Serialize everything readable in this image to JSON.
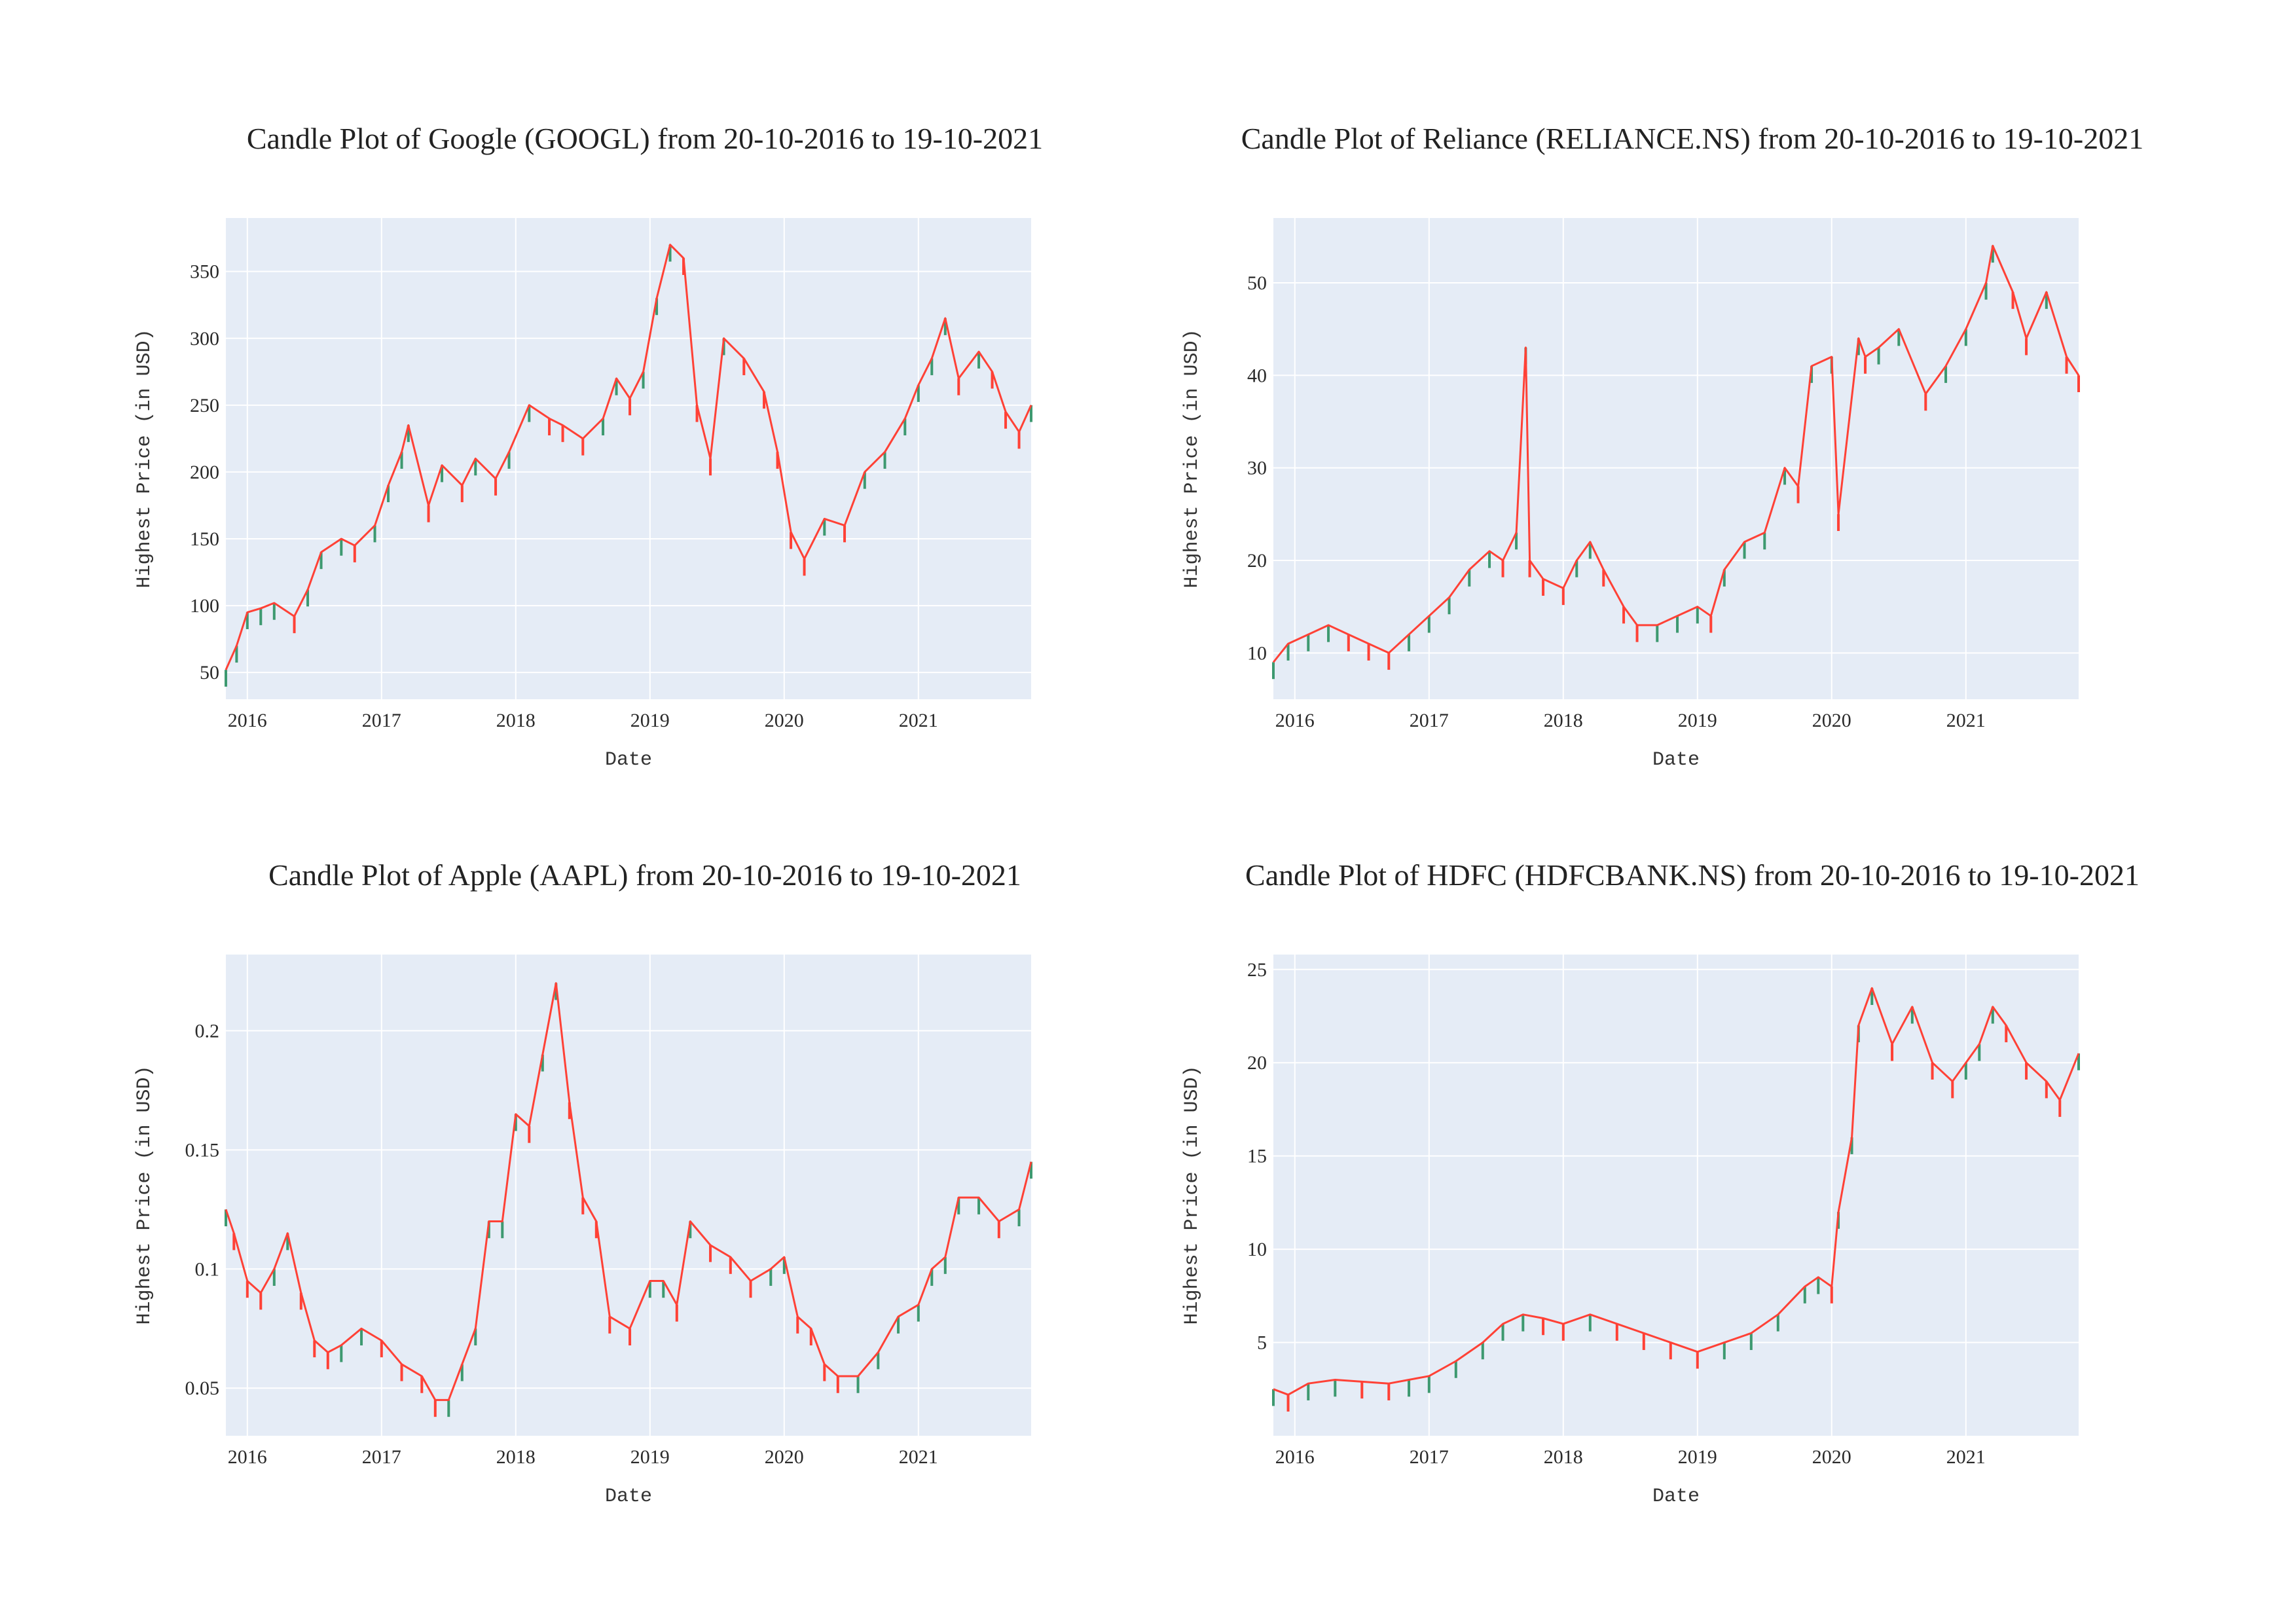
{
  "colors": {
    "increasing": "#3d9970",
    "decreasing": "#ff4136",
    "plot_bg": "#e5ecf6",
    "grid": "#ffffff"
  },
  "chart_data": [
    {
      "type": "candlestick",
      "title": "Candle Plot of Google (GOOGL) from 20-10-2016 to 19-10-2021",
      "xlabel": "Date",
      "ylabel": "Highest Price (in USD)",
      "x_ticks": [
        "2016",
        "2017",
        "2018",
        "2019",
        "2020",
        "2021"
      ],
      "x_range": [
        2015.84,
        2021.84
      ],
      "y_ticks": [
        "50",
        "100",
        "150",
        "200",
        "250",
        "300",
        "350"
      ],
      "y_tick_values": [
        50,
        100,
        150,
        200,
        250,
        300,
        350
      ],
      "y_range": [
        30,
        390
      ],
      "grid": true,
      "legend": "none",
      "series": [
        {
          "x": [
            2015.84,
            2015.92,
            2016.0,
            2016.1,
            2016.2,
            2016.35,
            2016.45,
            2016.55,
            2016.7,
            2016.8,
            2016.95,
            2017.05,
            2017.15,
            2017.2,
            2017.35,
            2017.45,
            2017.6,
            2017.7,
            2017.85,
            2017.95,
            2018.1,
            2018.25,
            2018.35,
            2018.5,
            2018.65,
            2018.75,
            2018.85,
            2018.95,
            2019.05,
            2019.15,
            2019.25,
            2019.35,
            2019.45,
            2019.55,
            2019.7,
            2019.85,
            2019.95,
            2020.05,
            2020.15,
            2020.3,
            2020.45,
            2020.6,
            2020.75,
            2020.9,
            2021.0,
            2021.1,
            2021.2,
            2021.3,
            2021.45,
            2021.55,
            2021.65,
            2021.75,
            2021.84
          ],
          "high": [
            52,
            70,
            95,
            98,
            102,
            92,
            112,
            140,
            150,
            145,
            160,
            190,
            215,
            235,
            175,
            205,
            190,
            210,
            195,
            215,
            250,
            240,
            235,
            225,
            240,
            270,
            255,
            275,
            330,
            370,
            360,
            250,
            210,
            300,
            285,
            260,
            215,
            155,
            135,
            165,
            160,
            200,
            215,
            240,
            265,
            285,
            315,
            270,
            290,
            275,
            245,
            230,
            250
          ]
        }
      ]
    },
    {
      "type": "candlestick",
      "title": "Candle Plot of Reliance (RELIANCE.NS) from 20-10-2016 to 19-10-2021",
      "xlabel": "Date",
      "ylabel": "Highest Price (in USD)",
      "x_ticks": [
        "2016",
        "2017",
        "2018",
        "2019",
        "2020",
        "2021"
      ],
      "x_range": [
        2015.84,
        2021.84
      ],
      "y_ticks": [
        "10",
        "20",
        "30",
        "40",
        "50"
      ],
      "y_tick_values": [
        10,
        20,
        30,
        40,
        50
      ],
      "y_range": [
        5,
        57
      ],
      "grid": true,
      "legend": "none",
      "series": [
        {
          "x": [
            2015.84,
            2015.95,
            2016.1,
            2016.25,
            2016.4,
            2016.55,
            2016.7,
            2016.85,
            2017.0,
            2017.15,
            2017.3,
            2017.45,
            2017.55,
            2017.65,
            2017.72,
            2017.75,
            2017.85,
            2018.0,
            2018.1,
            2018.2,
            2018.3,
            2018.45,
            2018.55,
            2018.7,
            2018.85,
            2019.0,
            2019.1,
            2019.2,
            2019.35,
            2019.5,
            2019.65,
            2019.75,
            2019.85,
            2020.0,
            2020.05,
            2020.2,
            2020.25,
            2020.35,
            2020.5,
            2020.7,
            2020.85,
            2021.0,
            2021.15,
            2021.2,
            2021.35,
            2021.45,
            2021.6,
            2021.75,
            2021.84
          ],
          "high": [
            9,
            11,
            12,
            13,
            12,
            11,
            10,
            12,
            14,
            16,
            19,
            21,
            20,
            23,
            43,
            20,
            18,
            17,
            20,
            22,
            19,
            15,
            13,
            13,
            14,
            15,
            14,
            19,
            22,
            23,
            30,
            28,
            41,
            42,
            25,
            44,
            42,
            43,
            45,
            38,
            41,
            45,
            50,
            54,
            49,
            44,
            49,
            42,
            40
          ]
        }
      ]
    },
    {
      "type": "candlestick",
      "title": "Candle Plot of Apple (AAPL) from 20-10-2016 to 19-10-2021",
      "xlabel": "Date",
      "ylabel": "Highest Price (in USD)",
      "x_ticks": [
        "2016",
        "2017",
        "2018",
        "2019",
        "2020",
        "2021"
      ],
      "x_range": [
        2015.84,
        2021.84
      ],
      "y_ticks": [
        "0.05",
        "0.1",
        "0.15",
        "0.2"
      ],
      "y_tick_values": [
        0.05,
        0.1,
        0.15,
        0.2
      ],
      "y_range": [
        0.03,
        0.232
      ],
      "grid": true,
      "legend": "none",
      "series": [
        {
          "x": [
            2015.84,
            2015.9,
            2016.0,
            2016.1,
            2016.2,
            2016.3,
            2016.4,
            2016.5,
            2016.6,
            2016.7,
            2016.85,
            2017.0,
            2017.15,
            2017.3,
            2017.4,
            2017.5,
            2017.6,
            2017.7,
            2017.8,
            2017.9,
            2018.0,
            2018.1,
            2018.2,
            2018.3,
            2018.4,
            2018.5,
            2018.6,
            2018.7,
            2018.85,
            2019.0,
            2019.1,
            2019.2,
            2019.3,
            2019.45,
            2019.6,
            2019.75,
            2019.9,
            2020.0,
            2020.1,
            2020.2,
            2020.3,
            2020.4,
            2020.55,
            2020.7,
            2020.85,
            2021.0,
            2021.1,
            2021.2,
            2021.3,
            2021.45,
            2021.6,
            2021.75,
            2021.84
          ],
          "high": [
            0.125,
            0.115,
            0.095,
            0.09,
            0.1,
            0.115,
            0.09,
            0.07,
            0.065,
            0.068,
            0.075,
            0.07,
            0.06,
            0.055,
            0.045,
            0.045,
            0.06,
            0.075,
            0.12,
            0.12,
            0.165,
            0.16,
            0.19,
            0.22,
            0.17,
            0.13,
            0.12,
            0.08,
            0.075,
            0.095,
            0.095,
            0.085,
            0.12,
            0.11,
            0.105,
            0.095,
            0.1,
            0.105,
            0.08,
            0.075,
            0.06,
            0.055,
            0.055,
            0.065,
            0.08,
            0.085,
            0.1,
            0.105,
            0.13,
            0.13,
            0.12,
            0.125,
            0.145
          ]
        }
      ]
    },
    {
      "type": "candlestick",
      "title": "Candle Plot of HDFC (HDFCBANK.NS) from 20-10-2016 to 19-10-2021",
      "xlabel": "Date",
      "ylabel": "Highest Price (in USD)",
      "x_ticks": [
        "2016",
        "2017",
        "2018",
        "2019",
        "2020",
        "2021"
      ],
      "x_range": [
        2015.84,
        2021.84
      ],
      "y_ticks": [
        "5",
        "10",
        "15",
        "20",
        "25"
      ],
      "y_tick_values": [
        5,
        10,
        15,
        20,
        25
      ],
      "y_range": [
        0,
        25.8
      ],
      "grid": true,
      "legend": "none",
      "series": [
        {
          "x": [
            2015.84,
            2015.95,
            2016.1,
            2016.3,
            2016.5,
            2016.7,
            2016.85,
            2017.0,
            2017.2,
            2017.4,
            2017.55,
            2017.7,
            2017.85,
            2018.0,
            2018.2,
            2018.4,
            2018.6,
            2018.8,
            2019.0,
            2019.2,
            2019.4,
            2019.6,
            2019.8,
            2019.9,
            2020.0,
            2020.05,
            2020.15,
            2020.2,
            2020.3,
            2020.45,
            2020.6,
            2020.75,
            2020.9,
            2021.0,
            2021.1,
            2021.2,
            2021.3,
            2021.45,
            2021.6,
            2021.7,
            2021.84
          ],
          "high": [
            2.5,
            2.2,
            2.8,
            3.0,
            2.9,
            2.8,
            3.0,
            3.2,
            4.0,
            5.0,
            6.0,
            6.5,
            6.3,
            6.0,
            6.5,
            6.0,
            5.5,
            5.0,
            4.5,
            5.0,
            5.5,
            6.5,
            8.0,
            8.5,
            8.0,
            12.0,
            16.0,
            22.0,
            24.0,
            21.0,
            23.0,
            20.0,
            19.0,
            20.0,
            21.0,
            23.0,
            22.0,
            20.0,
            19.0,
            18.0,
            20.5
          ]
        }
      ]
    }
  ]
}
